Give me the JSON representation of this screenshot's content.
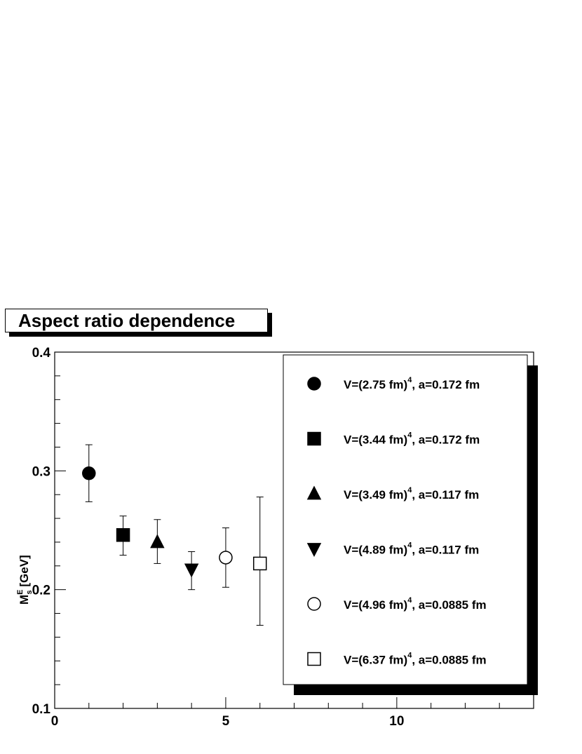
{
  "chart_data": {
    "type": "scatter",
    "title": "Aspect ratio dependence",
    "xlabel": "",
    "ylabel_main": "M",
    "ylabel_sup": "E",
    "ylabel_sub": "s",
    "ylabel_unit": "[GeV]",
    "xlim": [
      0,
      14
    ],
    "ylim": [
      0.1,
      0.4
    ],
    "xticks": [
      0,
      5,
      10
    ],
    "xtick_labels": [
      "0",
      "5",
      "10"
    ],
    "yticks": [
      0.1,
      0.2,
      0.3,
      0.4
    ],
    "ytick_labels": [
      "0.1",
      "0.2",
      "0.3",
      "0.4"
    ],
    "grid": false,
    "legend_position": "right",
    "series": [
      {
        "name": "V=(2.75 fm)^4, a=0.172 fm",
        "label_pre": "V=(2.75 fm)",
        "label_sup": "4",
        "label_post": ", a=0.172 fm",
        "marker": "filled-circle",
        "x": 1,
        "y": 0.298,
        "err_lo": 0.274,
        "err_hi": 0.322
      },
      {
        "name": "V=(3.44 fm)^4, a=0.172 fm",
        "label_pre": "V=(3.44 fm)",
        "label_sup": "4",
        "label_post": ", a=0.172 fm",
        "marker": "filled-square",
        "x": 2,
        "y": 0.246,
        "err_lo": 0.229,
        "err_hi": 0.262
      },
      {
        "name": "V=(3.49 fm)^4, a=0.117 fm",
        "label_pre": "V=(3.49 fm)",
        "label_sup": "4",
        "label_post": ", a=0.117 fm",
        "marker": "filled-triangle-up",
        "x": 3,
        "y": 0.24,
        "err_lo": 0.222,
        "err_hi": 0.259
      },
      {
        "name": "V=(4.89 fm)^4, a=0.117 fm",
        "label_pre": "V=(4.89 fm)",
        "label_sup": "4",
        "label_post": ", a=0.117 fm",
        "marker": "filled-triangle-down",
        "x": 4,
        "y": 0.217,
        "err_lo": 0.2,
        "err_hi": 0.232
      },
      {
        "name": "V=(4.96 fm)^4, a=0.0885 fm",
        "label_pre": "V=(4.96 fm)",
        "label_sup": "4",
        "label_post": ", a=0.0885 fm",
        "marker": "open-circle",
        "x": 5,
        "y": 0.227,
        "err_lo": 0.202,
        "err_hi": 0.252
      },
      {
        "name": "V=(6.37 fm)^4, a=0.0885 fm",
        "label_pre": "V=(6.37 fm)",
        "label_sup": "4",
        "label_post": ", a=0.0885 fm",
        "marker": "open-square",
        "x": 6,
        "y": 0.222,
        "err_lo": 0.17,
        "err_hi": 0.278
      }
    ],
    "colors": {
      "ink": "#000000",
      "background": "#ffffff"
    }
  }
}
